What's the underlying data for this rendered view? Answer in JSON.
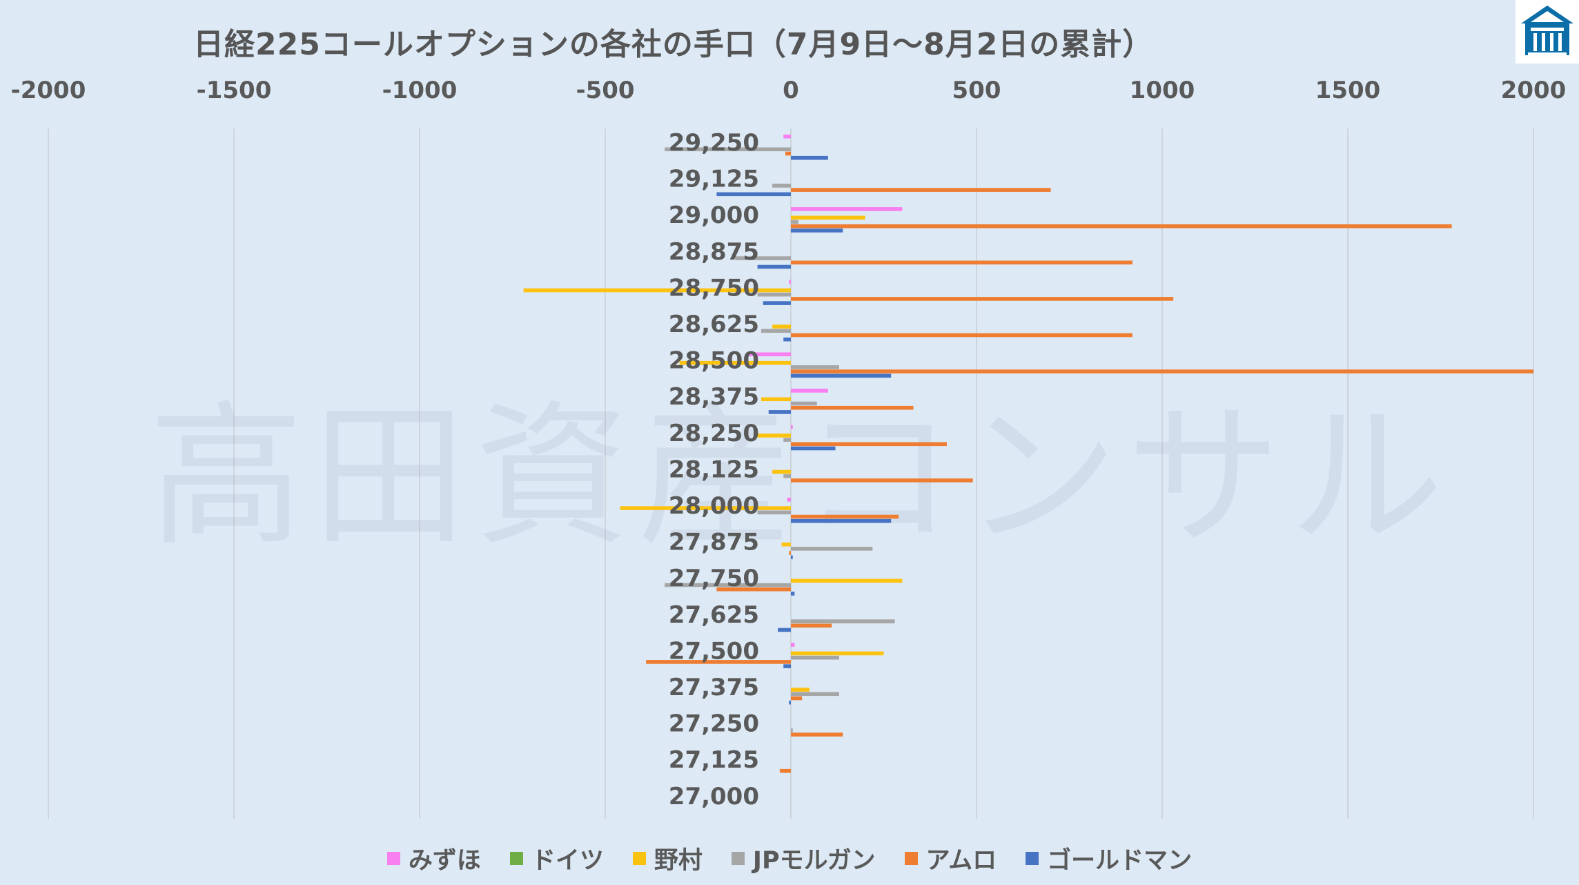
{
  "title": "日経225コールオプションの各社の手口（7月9日～8月2日の累計）",
  "watermark": "高田資産コンサル",
  "icons": {
    "logo": "takata-building-logo"
  },
  "colors": {
    "background": "#ddeaf6",
    "gridline": "#c8cdd3",
    "axis_text": "#595959"
  },
  "chart_data": {
    "type": "bar",
    "orientation": "horizontal",
    "title": "日経225コールオプションの各社の手口（7月9日～8月2日の累計）",
    "xlim": [
      -2000,
      2000
    ],
    "x_ticks": [
      "-2000",
      "-1500",
      "-1000",
      "-500",
      "0",
      "500",
      "1000",
      "1500",
      "2000"
    ],
    "x_tick_values": [
      -2000,
      -1500,
      -1000,
      -500,
      0,
      500,
      1000,
      1500,
      2000
    ],
    "grid": true,
    "legend_position": "bottom",
    "categories": [
      "29,250",
      "29,125",
      "29,000",
      "28,875",
      "28,750",
      "28,625",
      "28,500",
      "28,375",
      "28,250",
      "28,125",
      "28,000",
      "27,875",
      "27,750",
      "27,625",
      "27,500",
      "27,375",
      "27,250",
      "27,125",
      "27,000"
    ],
    "series": [
      {
        "name": "みずほ",
        "color": "#f77ff0",
        "values": [
          -20,
          0,
          300,
          0,
          -5,
          0,
          -120,
          100,
          5,
          0,
          -10,
          0,
          0,
          0,
          10,
          0,
          0,
          0,
          0
        ]
      },
      {
        "name": "ドイツ",
        "color": "#6fae44",
        "values": [
          0,
          0,
          0,
          0,
          0,
          0,
          0,
          0,
          0,
          0,
          0,
          0,
          0,
          0,
          0,
          0,
          0,
          0,
          0
        ]
      },
      {
        "name": "野村",
        "color": "#fbc20f",
        "values": [
          0,
          0,
          200,
          0,
          -720,
          -50,
          -300,
          -80,
          -90,
          -50,
          -460,
          -25,
          300,
          0,
          250,
          50,
          0,
          0,
          0
        ]
      },
      {
        "name": "JPモルガン",
        "color": "#a6a6a6",
        "values": [
          -340,
          -50,
          20,
          -150,
          -90,
          -80,
          130,
          70,
          -20,
          -20,
          -90,
          220,
          -340,
          280,
          130,
          130,
          5,
          0,
          0
        ]
      },
      {
        "name": "アムロ",
        "color": "#ee7d31",
        "values": [
          -15,
          700,
          1780,
          920,
          1030,
          920,
          2000,
          330,
          420,
          490,
          290,
          -5,
          -200,
          110,
          -390,
          30,
          140,
          -30,
          0
        ]
      },
      {
        "name": "ゴールドマン",
        "color": "#4673c4",
        "values": [
          100,
          -200,
          140,
          -90,
          -75,
          -20,
          270,
          -60,
          120,
          0,
          270,
          5,
          10,
          -35,
          -20,
          -5,
          0,
          0,
          0
        ]
      }
    ]
  }
}
